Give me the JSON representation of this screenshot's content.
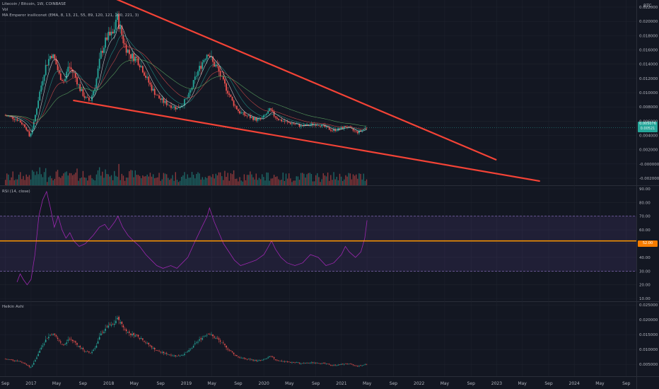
{
  "header": {
    "symbol": "Litecoin / Bitcoin, 1W, COINBASE",
    "vol": "Vol",
    "ma": "MA Emperor insiliconot (EMA, 8, 13, 21, 55, 89, 120, 121, 200, 221, 3)",
    "currency": "BTC"
  },
  "price_badges": [
    "0.005076",
    "0.00521"
  ],
  "rsi_badge": "52.00",
  "chart_data": [
    {
      "type": "candlestick",
      "title": "Litecoin / Bitcoin, 1W, COINBASE",
      "ylim": [
        -0.003,
        0.023
      ],
      "y_ticks": [
        0.022,
        0.02,
        0.018,
        0.016,
        0.014,
        0.012,
        0.01,
        0.008,
        0.006,
        0.004,
        0.002,
        -0.0,
        -0.002
      ],
      "y_tick_labels": [
        "0.022000",
        "0.020000",
        "0.018000",
        "0.016000",
        "0.014000",
        "0.012000",
        "0.010000",
        "0.008000",
        "0.006000",
        "0.004000",
        "0.002000",
        "-0.000000",
        "-0.002000"
      ],
      "x_labels": [
        "Sep",
        "2017",
        "May",
        "Sep",
        "2018",
        "May",
        "Sep",
        "2019",
        "May",
        "Sep",
        "2020",
        "May",
        "Sep",
        "2021",
        "May",
        "Sep",
        "2022",
        "May",
        "Sep",
        "2023",
        "May",
        "Sep",
        "2024",
        "May",
        "Sep"
      ],
      "x_range": [
        2016.6,
        2024.8
      ],
      "last_price": 0.005076,
      "price_path": [
        [
          2016.67,
          0.0068
        ],
        [
          2016.75,
          0.0066
        ],
        [
          2016.85,
          0.0062
        ],
        [
          2016.95,
          0.0052
        ],
        [
          2017.0,
          0.0038
        ],
        [
          2017.05,
          0.0055
        ],
        [
          2017.12,
          0.0095
        ],
        [
          2017.2,
          0.0135
        ],
        [
          2017.28,
          0.0155
        ],
        [
          2017.33,
          0.0145
        ],
        [
          2017.38,
          0.0125
        ],
        [
          2017.45,
          0.0115
        ],
        [
          2017.5,
          0.0138
        ],
        [
          2017.58,
          0.0125
        ],
        [
          2017.65,
          0.0105
        ],
        [
          2017.72,
          0.0092
        ],
        [
          2017.78,
          0.0088
        ],
        [
          2017.85,
          0.0112
        ],
        [
          2017.92,
          0.0155
        ],
        [
          2018.0,
          0.0178
        ],
        [
          2018.08,
          0.0182
        ],
        [
          2018.12,
          0.0208
        ],
        [
          2018.18,
          0.0185
        ],
        [
          2018.22,
          0.0168
        ],
        [
          2018.3,
          0.0152
        ],
        [
          2018.38,
          0.0148
        ],
        [
          2018.45,
          0.0135
        ],
        [
          2018.5,
          0.0122
        ],
        [
          2018.58,
          0.0105
        ],
        [
          2018.66,
          0.0093
        ],
        [
          2018.74,
          0.0086
        ],
        [
          2018.82,
          0.0082
        ],
        [
          2018.9,
          0.0078
        ],
        [
          2018.97,
          0.0084
        ],
        [
          2019.05,
          0.0095
        ],
        [
          2019.15,
          0.0125
        ],
        [
          2019.25,
          0.0148
        ],
        [
          2019.3,
          0.0158
        ],
        [
          2019.36,
          0.0142
        ],
        [
          2019.42,
          0.0135
        ],
        [
          2019.48,
          0.0118
        ],
        [
          2019.55,
          0.0103
        ],
        [
          2019.62,
          0.0086
        ],
        [
          2019.7,
          0.0073
        ],
        [
          2019.78,
          0.0068
        ],
        [
          2019.86,
          0.0065
        ],
        [
          2019.93,
          0.0062
        ],
        [
          2020.0,
          0.0064
        ],
        [
          2020.1,
          0.0076
        ],
        [
          2020.15,
          0.0068
        ],
        [
          2020.22,
          0.0062
        ],
        [
          2020.32,
          0.0058
        ],
        [
          2020.42,
          0.0056
        ],
        [
          2020.5,
          0.0053
        ],
        [
          2020.58,
          0.0054
        ],
        [
          2020.66,
          0.0056
        ],
        [
          2020.74,
          0.0055
        ],
        [
          2020.82,
          0.0051
        ],
        [
          2020.9,
          0.0047
        ],
        [
          2021.0,
          0.0049
        ],
        [
          2021.08,
          0.0053
        ],
        [
          2021.15,
          0.0048
        ],
        [
          2021.22,
          0.0044
        ],
        [
          2021.28,
          0.0047
        ],
        [
          2021.33,
          0.0051
        ]
      ],
      "annotations": [
        {
          "type": "trendline",
          "from": [
            2018.08,
            0.0232
          ],
          "to": [
            2022.99,
            0.0006
          ]
        },
        {
          "type": "trendline",
          "from": [
            2017.55,
            0.0089
          ],
          "to": [
            2023.55,
            -0.0024
          ]
        }
      ]
    },
    {
      "type": "line",
      "title": "RSI (14, close)",
      "ylim": [
        8,
        92
      ],
      "y_ticks": [
        90,
        80,
        70,
        60,
        50,
        40,
        30,
        20,
        10
      ],
      "y_tick_labels": [
        "90.00",
        "80.00",
        "70.00",
        "60.00",
        "50.00",
        "40.00",
        "30.00",
        "20.00",
        "10.00"
      ],
      "band": [
        30,
        70
      ],
      "horizontal_line": 52,
      "series": [
        {
          "points": [
            [
              2016.82,
              22
            ],
            [
              2016.86,
              28
            ],
            [
              2016.9,
              24
            ],
            [
              2016.95,
              20
            ],
            [
              2017.0,
              24
            ],
            [
              2017.05,
              42
            ],
            [
              2017.1,
              70
            ],
            [
              2017.15,
              82
            ],
            [
              2017.2,
              88
            ],
            [
              2017.25,
              76
            ],
            [
              2017.3,
              62
            ],
            [
              2017.35,
              70
            ],
            [
              2017.4,
              60
            ],
            [
              2017.45,
              54
            ],
            [
              2017.5,
              58
            ],
            [
              2017.55,
              52
            ],
            [
              2017.62,
              48
            ],
            [
              2017.7,
              50
            ],
            [
              2017.8,
              56
            ],
            [
              2017.88,
              62
            ],
            [
              2017.95,
              64
            ],
            [
              2018.0,
              60
            ],
            [
              2018.08,
              66
            ],
            [
              2018.12,
              70
            ],
            [
              2018.18,
              62
            ],
            [
              2018.25,
              56
            ],
            [
              2018.32,
              52
            ],
            [
              2018.4,
              48
            ],
            [
              2018.48,
              42
            ],
            [
              2018.55,
              38
            ],
            [
              2018.62,
              34
            ],
            [
              2018.7,
              32
            ],
            [
              2018.8,
              34
            ],
            [
              2018.88,
              32
            ],
            [
              2018.95,
              36
            ],
            [
              2019.02,
              40
            ],
            [
              2019.1,
              50
            ],
            [
              2019.2,
              62
            ],
            [
              2019.27,
              70
            ],
            [
              2019.3,
              76
            ],
            [
              2019.36,
              66
            ],
            [
              2019.42,
              58
            ],
            [
              2019.48,
              50
            ],
            [
              2019.55,
              44
            ],
            [
              2019.62,
              38
            ],
            [
              2019.7,
              34
            ],
            [
              2019.8,
              36
            ],
            [
              2019.9,
              38
            ],
            [
              2020.0,
              42
            ],
            [
              2020.06,
              48
            ],
            [
              2020.1,
              52
            ],
            [
              2020.15,
              46
            ],
            [
              2020.22,
              40
            ],
            [
              2020.3,
              36
            ],
            [
              2020.4,
              34
            ],
            [
              2020.5,
              36
            ],
            [
              2020.6,
              42
            ],
            [
              2020.7,
              40
            ],
            [
              2020.8,
              34
            ],
            [
              2020.9,
              36
            ],
            [
              2021.0,
              42
            ],
            [
              2021.05,
              48
            ],
            [
              2021.1,
              44
            ],
            [
              2021.18,
              40
            ],
            [
              2021.25,
              44
            ],
            [
              2021.3,
              54
            ],
            [
              2021.33,
              67
            ]
          ]
        }
      ]
    },
    {
      "type": "candlestick",
      "title": "Heikin Ashi",
      "ylim": [
        0.001,
        0.026
      ],
      "y_ticks": [
        0.025,
        0.02,
        0.015,
        0.01,
        0.005
      ],
      "y_tick_labels": [
        "0.025000",
        "0.020000",
        "0.015000",
        "0.010000",
        "0.005000"
      ]
    }
  ]
}
